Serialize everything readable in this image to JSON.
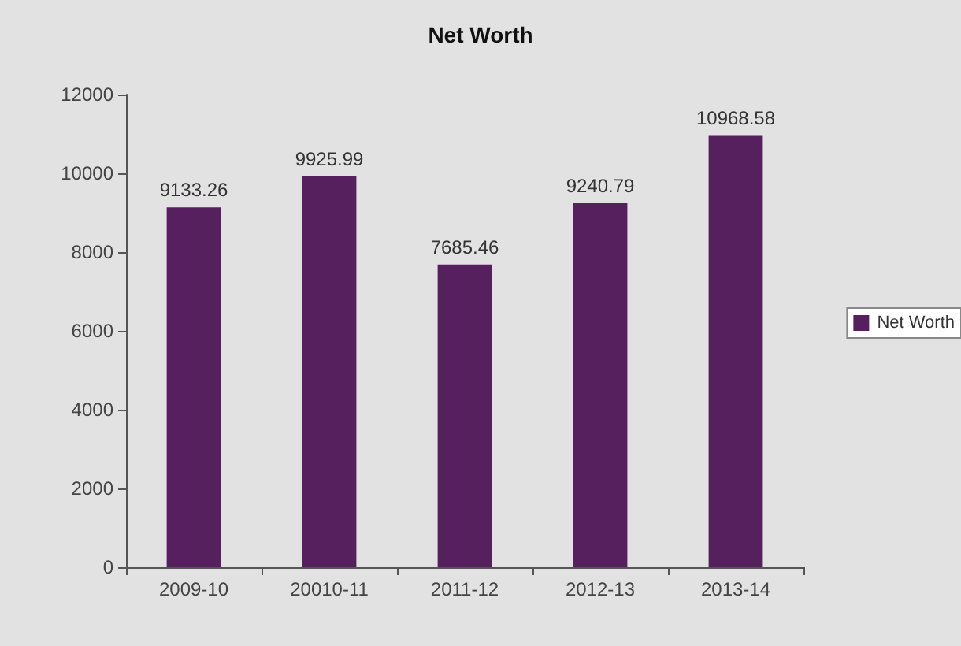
{
  "chart_data": {
    "type": "bar",
    "title": "Net Worth",
    "categories": [
      "2009-10",
      "20010-11",
      "2011-12",
      "2012-13",
      "2013-14"
    ],
    "series": [
      {
        "name": "Net Worth",
        "color": "#56205e",
        "values": [
          9133.26,
          9925.99,
          7685.46,
          9240.79,
          10968.58
        ]
      }
    ],
    "ylim": [
      0,
      12000
    ],
    "yticks": [
      0,
      2000,
      4000,
      6000,
      8000,
      10000,
      12000
    ],
    "data_labels": true,
    "grid": false,
    "legend": "right"
  }
}
